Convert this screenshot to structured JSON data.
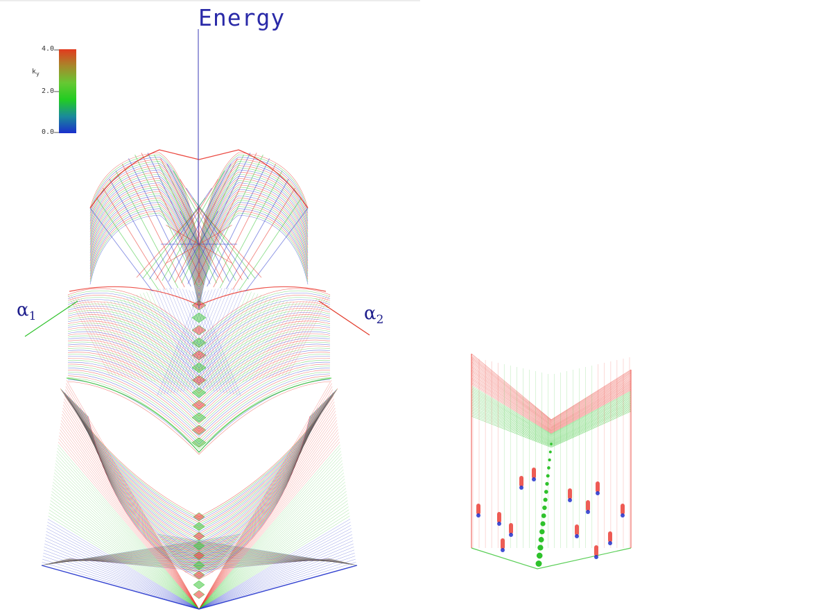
{
  "figure": {
    "axis_labels": {
      "vertical": "Energy",
      "left_base": "α",
      "left_sub": "1",
      "right_base": "α",
      "right_sub": "2"
    },
    "colorbar": {
      "title_base": "k",
      "title_sub": "y",
      "ticks": [
        "4.0",
        "2.0",
        "0.0"
      ],
      "gradient": [
        "#1a2ecc",
        "#1a8a9a",
        "#22cc22",
        "#66c833",
        "#a6882a",
        "#e23a1e"
      ]
    },
    "palette": {
      "red": "#e8271d",
      "green": "#2ec22b",
      "blue": "#2233cc",
      "energy_axis": "#3a3ab4",
      "alpha1_axis": "#2ec22b",
      "alpha2_axis": "#e23a2a"
    }
  }
}
